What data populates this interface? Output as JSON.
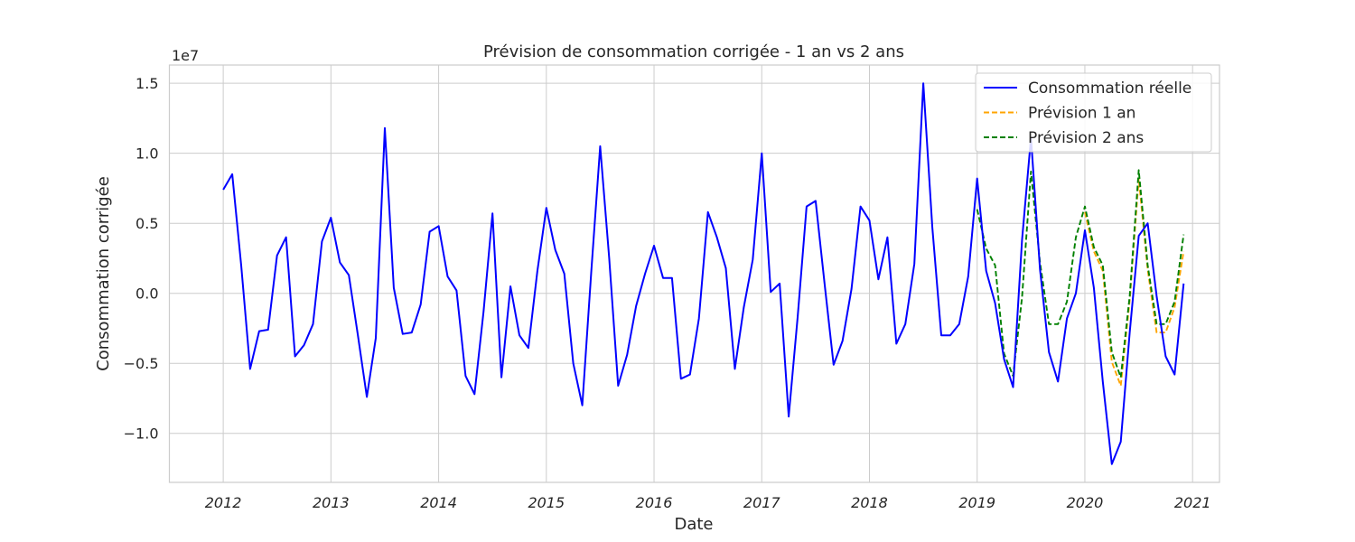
{
  "chart_data": {
    "type": "line",
    "title": "Prévision de consommation corrigée - 1 an vs 2 ans",
    "xlabel": "Date",
    "ylabel": "Consommation corrigée",
    "y_scale_label": "1e7",
    "x_ticks": [
      "2012",
      "2013",
      "2014",
      "2015",
      "2016",
      "2017",
      "2018",
      "2019",
      "2020",
      "2021"
    ],
    "y_ticks": [
      "−1.0",
      "−0.5",
      "0.0",
      "0.5",
      "1.0",
      "1.5"
    ],
    "xlim": [
      "2011-07-01",
      "2021-04-01"
    ],
    "ylim": [
      -1.35,
      1.63
    ],
    "y_unit_multiplier": 10000000,
    "grid": true,
    "legend_position": "top-right",
    "series": [
      {
        "name": "Consommation réelle",
        "color": "#0000ff",
        "style": "solid",
        "start": "2012-01",
        "values": [
          0.74,
          0.85,
          0.2,
          -0.54,
          -0.27,
          -0.26,
          0.27,
          0.4,
          -0.45,
          -0.37,
          -0.22,
          0.37,
          0.54,
          0.22,
          0.13,
          -0.3,
          -0.74,
          -0.32,
          1.18,
          0.04,
          -0.29,
          -0.28,
          -0.08,
          0.44,
          0.48,
          0.12,
          0.02,
          -0.59,
          -0.72,
          -0.13,
          0.57,
          -0.6,
          0.05,
          -0.3,
          -0.39,
          0.16,
          0.61,
          0.31,
          0.14,
          -0.5,
          -0.8,
          0.15,
          1.05,
          0.25,
          -0.66,
          -0.44,
          -0.09,
          0.14,
          0.34,
          0.11,
          0.11,
          -0.61,
          -0.58,
          -0.18,
          0.58,
          0.4,
          0.18,
          -0.54,
          -0.1,
          0.24,
          1.0,
          0.01,
          0.07,
          -0.88,
          -0.17,
          0.62,
          0.66,
          0.07,
          -0.51,
          -0.34,
          0.03,
          0.62,
          0.52,
          0.1,
          0.4,
          -0.36,
          -0.22,
          0.21,
          1.5,
          0.47,
          -0.3,
          -0.3,
          -0.22,
          0.12,
          0.82,
          0.16,
          -0.07,
          -0.47,
          -0.67,
          0.38,
          1.11,
          0.17,
          -0.42,
          -0.63,
          -0.18,
          0.0,
          0.45,
          0.04,
          -0.63,
          -1.22,
          -1.06,
          -0.28,
          0.41,
          0.5,
          -0.02,
          -0.45,
          -0.58,
          0.07
        ]
      },
      {
        "name": "Prévision 1 an",
        "color": "#ffa500",
        "style": "dashed",
        "start": "2020-01",
        "values": [
          0.58,
          0.3,
          0.16,
          -0.49,
          -0.66,
          -0.05,
          0.82,
          0.17,
          -0.28,
          -0.28,
          -0.1,
          0.3
        ]
      },
      {
        "name": "Prévision 2 ans",
        "color": "#008000",
        "style": "dashed",
        "start": "2019-01",
        "values": [
          0.6,
          0.32,
          0.2,
          -0.43,
          -0.59,
          -0.03,
          0.87,
          0.22,
          -0.22,
          -0.22,
          -0.06,
          0.4,
          0.62,
          0.33,
          0.2,
          -0.42,
          -0.6,
          -0.02,
          0.88,
          0.2,
          -0.22,
          -0.22,
          -0.06,
          0.42
        ]
      }
    ]
  }
}
